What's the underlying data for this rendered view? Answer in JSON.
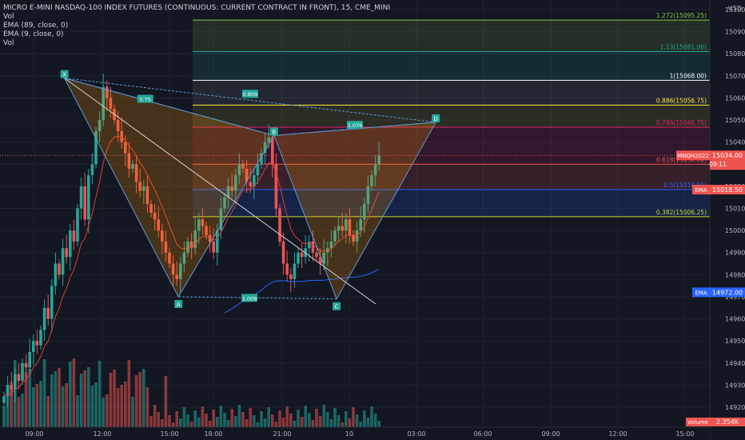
{
  "legend": {
    "title": "MICRO E-MINI NASDAQ-100 INDEX FUTURES (CONTINUOUS: CURRENT CONTRACT IN FRONT), 15, CME_MINI",
    "lines": [
      "Vol",
      "EMA (89, close, 0)",
      "EMA (9, close, 0)",
      "Vol"
    ]
  },
  "axis": {
    "currency": "USD",
    "price_ticks": [
      "15100.00",
      "15090.00",
      "15080.00",
      "15070.00",
      "15060.00",
      "15050.00",
      "15040.00",
      "15030.00",
      "15020.00",
      "15010.00",
      "15000.00",
      "14990.00",
      "14980.00",
      "14970.00",
      "14960.00",
      "14950.00",
      "14940.00",
      "14930.00",
      "14920.00"
    ],
    "time_labels": [
      "09:00",
      "12:00",
      "15:00",
      "18:00",
      "21:00",
      "10",
      "03:00",
      "06:00",
      "09:00",
      "12:00",
      "15:00"
    ]
  },
  "colors": {
    "up": "#26a69a",
    "down": "#ef5350",
    "ema_fast": "#e53935",
    "ema_slow": "#2962ff",
    "pattern_stroke": "#5b9bd5",
    "background": "#131722"
  },
  "price_badges": {
    "symbol": "MNQH2022",
    "price": "15034.00",
    "countdown": "09:11",
    "ema_fast_label": "EMA",
    "ema_fast_value": "15018.50",
    "ema_slow_label": "EMA",
    "ema_slow_value": "14972.00",
    "volume_label": "Volume",
    "volume_value": "2.354K"
  },
  "fib_levels": [
    {
      "label": "1.272(15095.25)",
      "price": 15095.25,
      "color": "#8bc34a"
    },
    {
      "label": "1.13(15081.00)",
      "price": 15081.0,
      "color": "#26a69a"
    },
    {
      "label": "1(15068.00)",
      "price": 15068.0,
      "color": "#ffffff"
    },
    {
      "label": "0.886(15056.75)",
      "price": 15056.75,
      "color": "#ffeb3b"
    },
    {
      "label": "0.786(15046.75)",
      "price": 15046.75,
      "color": "#e91e63"
    },
    {
      "label": "0.618(15030.00)",
      "price": 15030.0,
      "color": "#ef5350"
    },
    {
      "label": "0.5(15018.50)",
      "price": 15018.5,
      "color": "#2962ff"
    },
    {
      "label": "0.382(15006.25)",
      "price": 15006.25,
      "color": "#cddc39"
    }
  ],
  "pattern": {
    "points": [
      {
        "label": "X",
        "price": 15069,
        "index": 16
      },
      {
        "label": "A",
        "price": 14970,
        "index": 47
      },
      {
        "label": "B",
        "price": 15043,
        "index": 73
      },
      {
        "label": "C",
        "price": 14969,
        "index": 90
      },
      {
        "label": "D",
        "price": 15049,
        "index": 117
      }
    ],
    "ratios": [
      {
        "label": "0.75"
      },
      {
        "label": "0.809"
      },
      {
        "label": "1.009"
      },
      {
        "label": "1.076"
      }
    ]
  },
  "chart_data": {
    "type": "candlestick",
    "title": "MICRO E-MINI NASDAQ-100 INDEX FUTURES (CONTINUOUS: CURRENT CONTRACT IN FRONT), 15, CME_MINI",
    "interval": "15",
    "ylim": [
      14915,
      15105
    ],
    "candles_close": [
      14925,
      14930,
      14928,
      14935,
      14932,
      14940,
      14938,
      14945,
      14950,
      14948,
      14955,
      14965,
      14960,
      14975,
      14985,
      14980,
      14992,
      14988,
      15000,
      14995,
      15010,
      15020,
      15005,
      15025,
      15030,
      15045,
      15050,
      15065,
      15060,
      15055,
      15050,
      15045,
      15040,
      15035,
      15028,
      15030,
      15022,
      15018,
      15020,
      15012,
      15008,
      15005,
      15000,
      14995,
      14990,
      14985,
      14980,
      14978,
      14985,
      14990,
      14995,
      14992,
      15000,
      15005,
      15002,
      14998,
      14995,
      14990,
      15000,
      15010,
      15015,
      15020,
      15018,
      15025,
      15030,
      15028,
      15022,
      15020,
      15025,
      15030,
      15035,
      15040,
      15042,
      15030,
      15010,
      14995,
      14985,
      14980,
      14978,
      14985,
      14990,
      14988,
      14992,
      14995,
      14990,
      14988,
      14985,
      14990,
      14992,
      14995,
      15000,
      15002,
      15000,
      15005,
      14998,
      14995,
      15000,
      15005,
      15012,
      15020,
      15025,
      15030,
      15034
    ],
    "ema_fast_last": 15018.5,
    "ema_slow_last": 14972.0,
    "volume_last": "2.354K"
  }
}
